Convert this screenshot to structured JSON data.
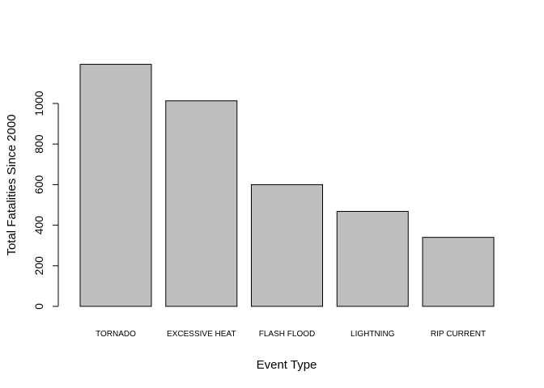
{
  "chart_data": {
    "type": "bar",
    "title": "",
    "xlabel": "Event Type",
    "ylabel": "Total Fatalities Since 2000",
    "categories": [
      "TORNADO",
      "EXCESSIVE HEAT",
      "FLASH FLOOD",
      "LIGHTNING",
      "RIP CURRENT"
    ],
    "values": [
      1193,
      1013,
      600,
      468,
      340
    ],
    "ylim": [
      0,
      1200
    ],
    "yticks": [
      0,
      200,
      400,
      600,
      800,
      1000
    ],
    "grid": false,
    "colors": {
      "bar_fill": "#bebebe",
      "bar_stroke": "#000000"
    }
  }
}
